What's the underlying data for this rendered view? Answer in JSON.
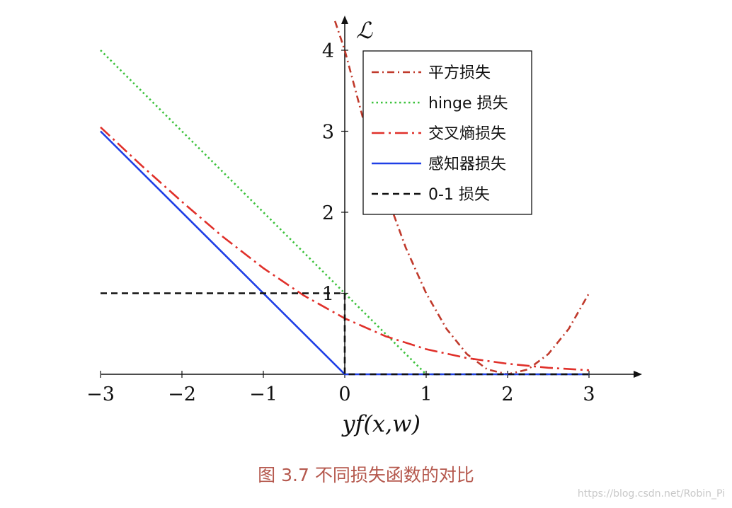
{
  "chart_data": {
    "type": "line",
    "xlabel": "yf(x,w)",
    "ylabel": "ℒ",
    "xlim": [
      -3,
      3.65
    ],
    "ylim": [
      0,
      4.4
    ],
    "xticks": [
      -3,
      -2,
      -1,
      0,
      1,
      2,
      3
    ],
    "xtick_labels": [
      "−3",
      "−2",
      "−1",
      "0",
      "1",
      "2",
      "3"
    ],
    "yticks": [
      1,
      2,
      3,
      4
    ],
    "ytick_labels": [
      "1",
      "2",
      "3",
      "4"
    ],
    "grid": false,
    "legend_position": "top-right",
    "series": [
      {
        "name": "平方损失",
        "color": "#c0392b",
        "dash": "dash-dot",
        "x": [
          -0.12,
          0,
          0.25,
          0.5,
          0.75,
          1,
          1.25,
          1.5,
          1.75,
          2,
          2.25,
          2.5,
          2.75,
          3
        ],
        "y": [
          4.36,
          4.0,
          3.06,
          2.25,
          1.56,
          1.0,
          0.56,
          0.25,
          0.06,
          0.0,
          0.06,
          0.25,
          0.56,
          1.0
        ]
      },
      {
        "name": "hinge 损失",
        "color": "#3cc23c",
        "dash": "dotted",
        "x": [
          -3,
          0,
          1,
          3
        ],
        "y": [
          4,
          1,
          0,
          0
        ]
      },
      {
        "name": "交叉熵损失",
        "color": "#e0302a",
        "dash": "long-dash-dot",
        "x": [
          -3,
          -2.5,
          -2,
          -1.5,
          -1,
          -0.5,
          0,
          0.5,
          1,
          1.5,
          2,
          2.5,
          3
        ],
        "y": [
          3.05,
          2.58,
          2.13,
          1.7,
          1.31,
          0.97,
          0.69,
          0.47,
          0.31,
          0.2,
          0.13,
          0.08,
          0.05
        ]
      },
      {
        "name": "感知器损失",
        "color": "#1f3fe6",
        "dash": "solid",
        "x": [
          -3,
          0,
          3
        ],
        "y": [
          3,
          0,
          0
        ]
      },
      {
        "name": "0-1 损失",
        "color": "#111111",
        "dash": "dashed",
        "x": [
          -3,
          0,
          0,
          3
        ],
        "y": [
          1,
          1,
          0,
          0
        ]
      }
    ]
  },
  "caption": "图 3.7   不同损失函数的对比",
  "watermark": "https://blog.csdn.net/Robin_Pi"
}
